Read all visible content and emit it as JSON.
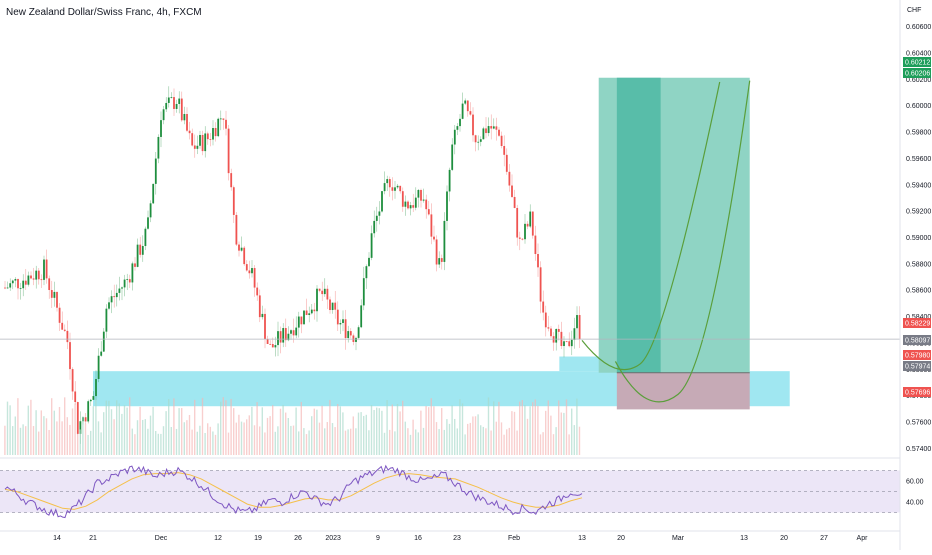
{
  "header": {
    "symbol_title": "New Zealand Dollar/Swiss Franc, 4h, FXCM"
  },
  "colors": {
    "bull": "#26a69a",
    "bull_candle": "#1e8e3e",
    "bear": "#ef5350",
    "zone": "#9be6f0",
    "profit": "#4fb8a4",
    "profit_light": "#8fd4c4",
    "loss": "#c6aab6",
    "rsi_line": "#7e57c2",
    "rsi_ma": "#f5c04a",
    "rsi_band": "#ece6f7",
    "projection": "#5a9e3a",
    "grid_line": "#b2b5be"
  },
  "chart_data": [
    {
      "type": "candlestick",
      "title": "New Zealand Dollar/Swiss Franc, 4h, FXCM",
      "currency_label": "CHF",
      "y_ticks": [
        "0.60600",
        "0.60400",
        "0.60200",
        "0.60000",
        "0.59800",
        "0.59600",
        "0.59400",
        "0.59200",
        "0.59000",
        "0.58800",
        "0.58600",
        "0.58400",
        "0.58200",
        "0.58000",
        "0.57800",
        "0.57600",
        "0.57400"
      ],
      "ylim": [
        0.5735,
        0.6065
      ],
      "x_ticks": [
        "14",
        "21",
        "Dec",
        "12",
        "19",
        "26",
        "2023",
        "9",
        "16",
        "23",
        "Feb",
        "13",
        "20",
        "Mar",
        "13",
        "20",
        "27",
        "Apr"
      ],
      "price_path": [
        {
          "date": "Nov 10",
          "close": 0.5862
        },
        {
          "date": "Nov 13",
          "close": 0.5876
        },
        {
          "date": "Nov 16",
          "close": 0.5822
        },
        {
          "date": "Nov 17",
          "close": 0.5792
        },
        {
          "date": "Nov 18",
          "close": 0.5756
        },
        {
          "date": "Nov 21",
          "close": 0.5778
        },
        {
          "date": "Nov 23",
          "close": 0.5848
        },
        {
          "date": "Nov 26",
          "close": 0.5868
        },
        {
          "date": "Nov 29",
          "close": 0.5905
        },
        {
          "date": "Dec 1",
          "close": 0.5995
        },
        {
          "date": "Dec 4",
          "close": 0.6005
        },
        {
          "date": "Dec 7",
          "close": 0.5968
        },
        {
          "date": "Dec 10",
          "close": 0.5975
        },
        {
          "date": "Dec 13",
          "close": 0.5995
        },
        {
          "date": "Dec 15",
          "close": 0.5905
        },
        {
          "date": "Dec 18",
          "close": 0.587
        },
        {
          "date": "Dec 21",
          "close": 0.5815
        },
        {
          "date": "Dec 24",
          "close": 0.5828
        },
        {
          "date": "Dec 27",
          "close": 0.5842
        },
        {
          "date": "Dec 30",
          "close": 0.5858
        },
        {
          "date": "Jan 2",
          "close": 0.5835
        },
        {
          "date": "Jan 5",
          "close": 0.5825
        },
        {
          "date": "Jan 8",
          "close": 0.5905
        },
        {
          "date": "Jan 11",
          "close": 0.5945
        },
        {
          "date": "Jan 14",
          "close": 0.5925
        },
        {
          "date": "Jan 17",
          "close": 0.593
        },
        {
          "date": "Jan 20",
          "close": 0.5875
        },
        {
          "date": "Jan 22",
          "close": 0.5965
        },
        {
          "date": "Jan 24",
          "close": 0.6
        },
        {
          "date": "Jan 26",
          "close": 0.5975
        },
        {
          "date": "Jan 28",
          "close": 0.5985
        },
        {
          "date": "Jan 30",
          "close": 0.5975
        },
        {
          "date": "Feb 2",
          "close": 0.5895
        },
        {
          "date": "Feb 4",
          "close": 0.5915
        },
        {
          "date": "Feb 6",
          "close": 0.5845
        },
        {
          "date": "Feb 8",
          "close": 0.5828
        },
        {
          "date": "Feb 10",
          "close": 0.5812
        },
        {
          "date": "Feb 12",
          "close": 0.5838
        },
        {
          "date": "Feb 13",
          "close": 0.5823
        }
      ],
      "supply_demand_zones": [
        {
          "from": "Nov 21",
          "to": "Mar 21",
          "low": 0.5772,
          "high": 0.57986
        },
        {
          "from": "Feb 9",
          "to": "Feb 23",
          "low": 0.57986,
          "high": 0.58097
        }
      ],
      "position_tool": {
        "start": "Feb 16",
        "end": "Mar 14",
        "entry": 0.57974,
        "target": 0.60212,
        "stop": 0.57696
      },
      "price_labels": [
        {
          "value": "0.60212",
          "color": "#1e9e5a"
        },
        {
          "value": "0.60206",
          "color": "#1e9e5a"
        },
        {
          "value": "0.58229",
          "color": "#ef5350"
        },
        {
          "value": "0.58097",
          "color": "#787b86"
        },
        {
          "value": "0.57980",
          "color": "#ef5350"
        },
        {
          "value": "0.57974",
          "color": "#787b86"
        },
        {
          "value": "0.57696",
          "color": "#ef5350"
        }
      ],
      "last_price": 0.58229
    },
    {
      "type": "line",
      "title": "",
      "y_ticks": [
        "60.00",
        "40.00"
      ],
      "ylim": [
        20,
        80
      ],
      "band": [
        30,
        70
      ],
      "midline": 50,
      "series": [
        {
          "values": [
            55,
            48,
            40,
            35,
            30,
            28,
            34,
            45,
            58,
            62,
            68,
            72,
            70,
            64,
            68,
            70,
            64,
            56,
            46,
            38,
            32,
            30,
            35,
            42,
            40,
            46,
            50,
            42,
            38,
            44,
            58,
            64,
            68,
            72,
            70,
            64,
            60,
            62,
            66,
            58,
            50,
            44,
            40,
            36,
            32,
            34,
            30,
            38,
            42,
            50,
            48
          ]
        },
        {
          "values": [
            52,
            50,
            46,
            42,
            38,
            34,
            33,
            36,
            42,
            50,
            56,
            62,
            66,
            67,
            67,
            68,
            66,
            62,
            56,
            50,
            44,
            38,
            35,
            35,
            37,
            40,
            43,
            44,
            42,
            42,
            46,
            52,
            58,
            63,
            66,
            67,
            66,
            64,
            63,
            62,
            58,
            54,
            49,
            44,
            40,
            37,
            35,
            35,
            37,
            41,
            44
          ]
        }
      ]
    }
  ]
}
